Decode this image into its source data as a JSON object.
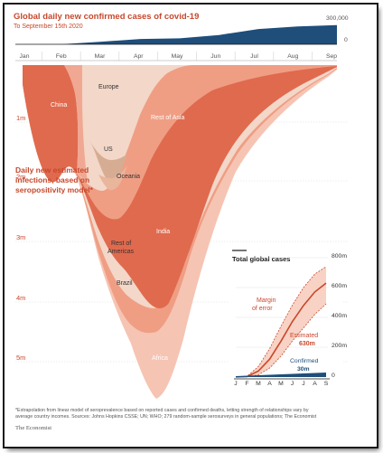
{
  "colors": {
    "accent": "#c8472c",
    "confirmed_area": "#1f4e7a",
    "main_light": "#f6c4b3",
    "main_mid": "#ef9e84",
    "main_dark": "#e06a4e",
    "europe": "#f3d7c9",
    "americas_tan": "#d6ad93"
  },
  "chart_data": [
    {
      "type": "area",
      "title": "Global daily new confirmed cases of covid-19",
      "subtitle": "To September 15th 2020",
      "months": [
        "Jan",
        "Feb",
        "Mar",
        "Apr",
        "May",
        "Jun",
        "Jul",
        "Aug",
        "Sep"
      ],
      "top_strip": {
        "series_name": "Global daily new confirmed cases",
        "y_ticks": [
          "300,000",
          "0"
        ],
        "ylim": [
          0,
          300000
        ],
        "x": [
          "Jan",
          "Feb",
          "Mar",
          "Apr",
          "May",
          "Jun",
          "Jul",
          "Aug",
          "Sep"
        ],
        "values": [
          0,
          2000,
          40000,
          80000,
          90000,
          140000,
          230000,
          270000,
          290000
        ]
      },
      "main": {
        "label": "Daily new estimated infections, based on seropositivity model*",
        "y_ticks": [
          "1m",
          "2m",
          "3m",
          "4m",
          "5m"
        ],
        "ylim": [
          0,
          5500000
        ],
        "direction": "downward",
        "regions": [
          "China",
          "Europe",
          "US",
          "Oceania",
          "Rest of Asia",
          "Rest of Americas",
          "Brazil",
          "India",
          "Africa"
        ],
        "peak_total": 5200000
      }
    },
    {
      "type": "line",
      "title": "Total global cases",
      "x_ticks": [
        "J",
        "F",
        "M",
        "A",
        "M",
        "J",
        "J",
        "A",
        "S"
      ],
      "y_ticks": [
        "800m",
        "600m",
        "400m",
        "200m",
        "0"
      ],
      "ylim": [
        0,
        800000000
      ],
      "series": [
        {
          "name": "Estimated",
          "value_label": "630m",
          "values": [
            0,
            3000000,
            40000000,
            120000000,
            240000000,
            370000000,
            480000000,
            570000000,
            630000000
          ]
        },
        {
          "name": "Margin of error",
          "kind": "upper",
          "values": [
            0,
            5000000,
            70000000,
            190000000,
            340000000,
            480000000,
            600000000,
            690000000,
            740000000
          ]
        },
        {
          "name": "Margin of error",
          "kind": "lower",
          "values": [
            0,
            2000000,
            15000000,
            60000000,
            140000000,
            240000000,
            330000000,
            420000000,
            490000000
          ]
        },
        {
          "name": "Confirmed",
          "value_label": "30m",
          "values": [
            0,
            80000,
            900000,
            3300000,
            6200000,
            10500000,
            17500000,
            25500000,
            30000000
          ]
        }
      ]
    }
  ],
  "text": {
    "title": "Global daily new confirmed cases of covid-19",
    "subtitle": "To September 15th 2020",
    "strip_top": "300,000",
    "strip_zero": "0",
    "ylab_1m": "1m",
    "ylab_2m": "2m",
    "ylab_3m": "3m",
    "ylab_4m": "4m",
    "ylab_5m": "5m",
    "main_label_1": "Daily new estimated",
    "main_label_2": "infections, based on",
    "main_label_3": "seropositivity model*",
    "region_china": "China",
    "region_europe": "Europe",
    "region_us": "US",
    "region_oceania": "Oceania",
    "region_rest_asia": "Rest of Asia",
    "region_india": "India",
    "region_rest_americas_1": "Rest of",
    "region_rest_americas_2": "Americas",
    "region_brazil": "Brazil",
    "region_africa": "Africa",
    "inset_title": "Total global cases",
    "inset_800": "800m",
    "inset_600": "600m",
    "inset_400": "400m",
    "inset_200": "200m",
    "inset_0": "0",
    "inset_moe_1": "Margin",
    "inset_moe_2": "of error",
    "inset_est_1": "Estimated",
    "inset_est_2": "630m",
    "inset_conf_1": "Confirmed",
    "inset_conf_2": "30m",
    "footnote_1": "*Extrapolation from linear model of seroprevalence based on reported cases and confirmed deaths, letting strength of relationships vary by",
    "footnote_2": "average country incomes.   Sources: Johns Hopkins CSSE; UN; WHO; 279 random-sample serosurveys in general populations; The Economist",
    "source": "The Economist"
  }
}
